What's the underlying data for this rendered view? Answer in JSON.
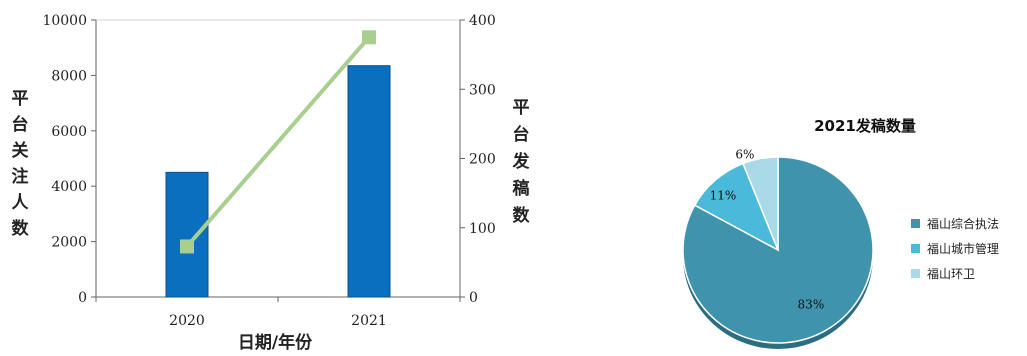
{
  "chart_data": [
    {
      "type": "bar+line",
      "categories": [
        "2020",
        "2021"
      ],
      "xlabel": "日期/年份",
      "ylabel_left": "平台关注人数",
      "ylabel_right": "平台发稿数",
      "ylim_left": [
        0,
        10000
      ],
      "ylim_right": [
        0,
        400
      ],
      "yticks_left": [
        0,
        2000,
        4000,
        6000,
        8000,
        10000
      ],
      "yticks_right": [
        0,
        100,
        200,
        300,
        400
      ],
      "series": [
        {
          "values": [
            4500,
            8350
          ],
          "axis": "left",
          "kind": "bar",
          "color": "#0b6fc0"
        },
        {
          "values": [
            73,
            375
          ],
          "axis": "right",
          "kind": "line",
          "color": "#a9cf8f"
        }
      ],
      "grid": false,
      "legend": "none"
    },
    {
      "type": "pie",
      "title": "2021发稿数量",
      "labels": [
        "福山综合执法",
        "福山城市管理",
        "福山环卫"
      ],
      "values": [
        83,
        11,
        6
      ],
      "value_labels": [
        "83%",
        "11%",
        "6%"
      ],
      "colors": [
        "#3f93ad",
        "#4bb9d9",
        "#a9d8e6"
      ],
      "legend": "right"
    }
  ]
}
